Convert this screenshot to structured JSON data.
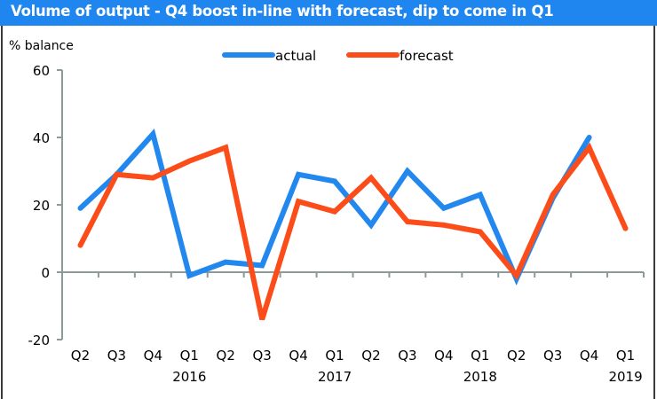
{
  "header": {
    "title": "Volume of output - Q4 boost in-line with forecast, dip to come in Q1",
    "bar_color": "#1f86f0"
  },
  "chart_data": {
    "type": "line",
    "title": "Volume of output - Q4 boost in-line with forecast, dip to come in Q1",
    "xlabel": "",
    "ylabel": "% balance",
    "ylim": [
      -20,
      60
    ],
    "yticks": [
      -20,
      0,
      20,
      40,
      60
    ],
    "ytick_labels": [
      "-20",
      "0",
      "20",
      "40",
      "60"
    ],
    "grid": false,
    "legend_position": "top-center",
    "categories": [
      "Q2",
      "Q3",
      "Q4",
      "Q1",
      "Q2",
      "Q3",
      "Q4",
      "Q1",
      "Q2",
      "Q3",
      "Q4",
      "Q1",
      "Q2",
      "Q3",
      "Q4",
      "Q1"
    ],
    "year_labels": [
      {
        "index": 3,
        "label": "2016"
      },
      {
        "index": 7,
        "label": "2017"
      },
      {
        "index": 11,
        "label": "2018"
      },
      {
        "index": 15,
        "label": "2019"
      }
    ],
    "series": [
      {
        "name": "actual",
        "color": "#2388ee",
        "values": [
          19,
          29,
          41,
          -1,
          3,
          2,
          29,
          27,
          14,
          30,
          19,
          23,
          -2,
          22,
          40,
          null
        ]
      },
      {
        "name": "forecast",
        "color": "#fb4c1a",
        "values": [
          8,
          29,
          28,
          33,
          37,
          -14,
          21,
          18,
          28,
          15,
          14,
          12,
          -1,
          23,
          37,
          13
        ]
      }
    ]
  }
}
